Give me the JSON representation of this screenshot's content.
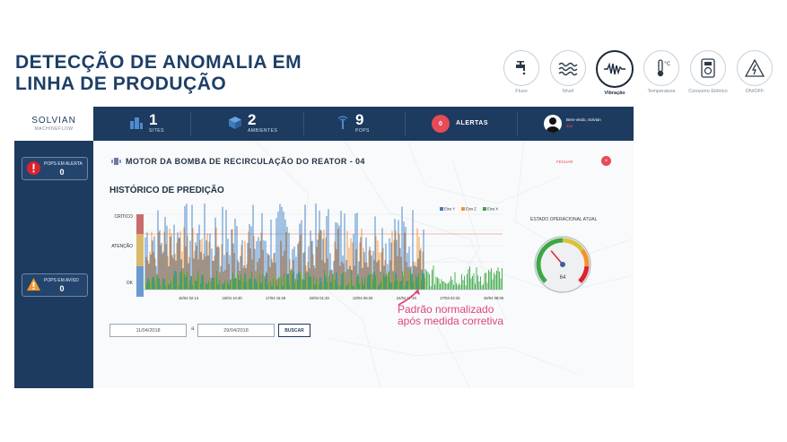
{
  "slide": {
    "title_line1": "DETECÇÃO DE ANOMALIA EM",
    "title_line2": "LINHA DE PRODUÇÃO"
  },
  "sensors": [
    {
      "label": "Fluxo",
      "icon": "faucet-icon"
    },
    {
      "label": "Nível",
      "icon": "water-level-icon"
    },
    {
      "label": "Vibração",
      "icon": "vibration-icon",
      "active": true
    },
    {
      "label": "Temperatura",
      "icon": "thermometer-icon"
    },
    {
      "label": "Consumo Elétrico",
      "icon": "power-meter-icon"
    },
    {
      "label": "ON/OFF",
      "icon": "power-toggle-icon"
    }
  ],
  "app": {
    "brand": {
      "name": "SOLVIAN",
      "sub": "MACHINEFLOW"
    },
    "kpis": [
      {
        "value": "1",
        "label": "SITES",
        "icon": "building-icon"
      },
      {
        "value": "2",
        "label": "AMBIENTES",
        "icon": "cube-icon"
      },
      {
        "value": "9",
        "label": "POPS",
        "icon": "antenna-icon"
      }
    ],
    "alerts": {
      "count": "0",
      "label": "ALERTAS"
    },
    "user": {
      "greeting": "Bem-vindo, Solvian",
      "logout": "sair"
    },
    "sidebar": [
      {
        "label": "POPS EM ALERTA",
        "value": "0",
        "icon": "alert-circle-icon"
      },
      {
        "label": "POPS EM AVISO",
        "value": "0",
        "icon": "warning-triangle-icon"
      }
    ],
    "panel": {
      "motor_title": "MOTOR DA BOMBA DE RECIRCULAÇÃO DO REATOR - 04",
      "close_label": "FECHAR",
      "close_icon": "close-icon",
      "history_title": "HISTÓRICO DE PREDIÇÃO",
      "status_title": "ESTADO OPERACIONAL ATUAL",
      "gauge_value": 64,
      "date_from": "11/04/2018",
      "date_sep": "a",
      "date_to": "29/04/2018",
      "search_label": "BUSCAR"
    }
  },
  "chart_data": {
    "type": "line",
    "title": "HISTÓRICO DE PREDIÇÃO",
    "y_categories": [
      "OK",
      "ATENÇÃO",
      "CRÍTICO"
    ],
    "x_ticks": [
      "15/04 02:13",
      "15/04 10:40",
      "17/04 15:28",
      "20/04 01:33",
      "22/04 06:26",
      "24/04 17:40",
      "27/04 02:33",
      "29/04 08:06"
    ],
    "series": [
      {
        "name": "Eixo Y",
        "color": "#3b7dc4"
      },
      {
        "name": "Eixo Z",
        "color": "#f2922f"
      },
      {
        "name": "Eixo X",
        "color": "#3aa845"
      }
    ],
    "grid": true,
    "legend": "top-right"
  },
  "annotation": {
    "line1": "Padrão normalizado",
    "line2": "após medida corretiva",
    "color": "#e0457d"
  }
}
